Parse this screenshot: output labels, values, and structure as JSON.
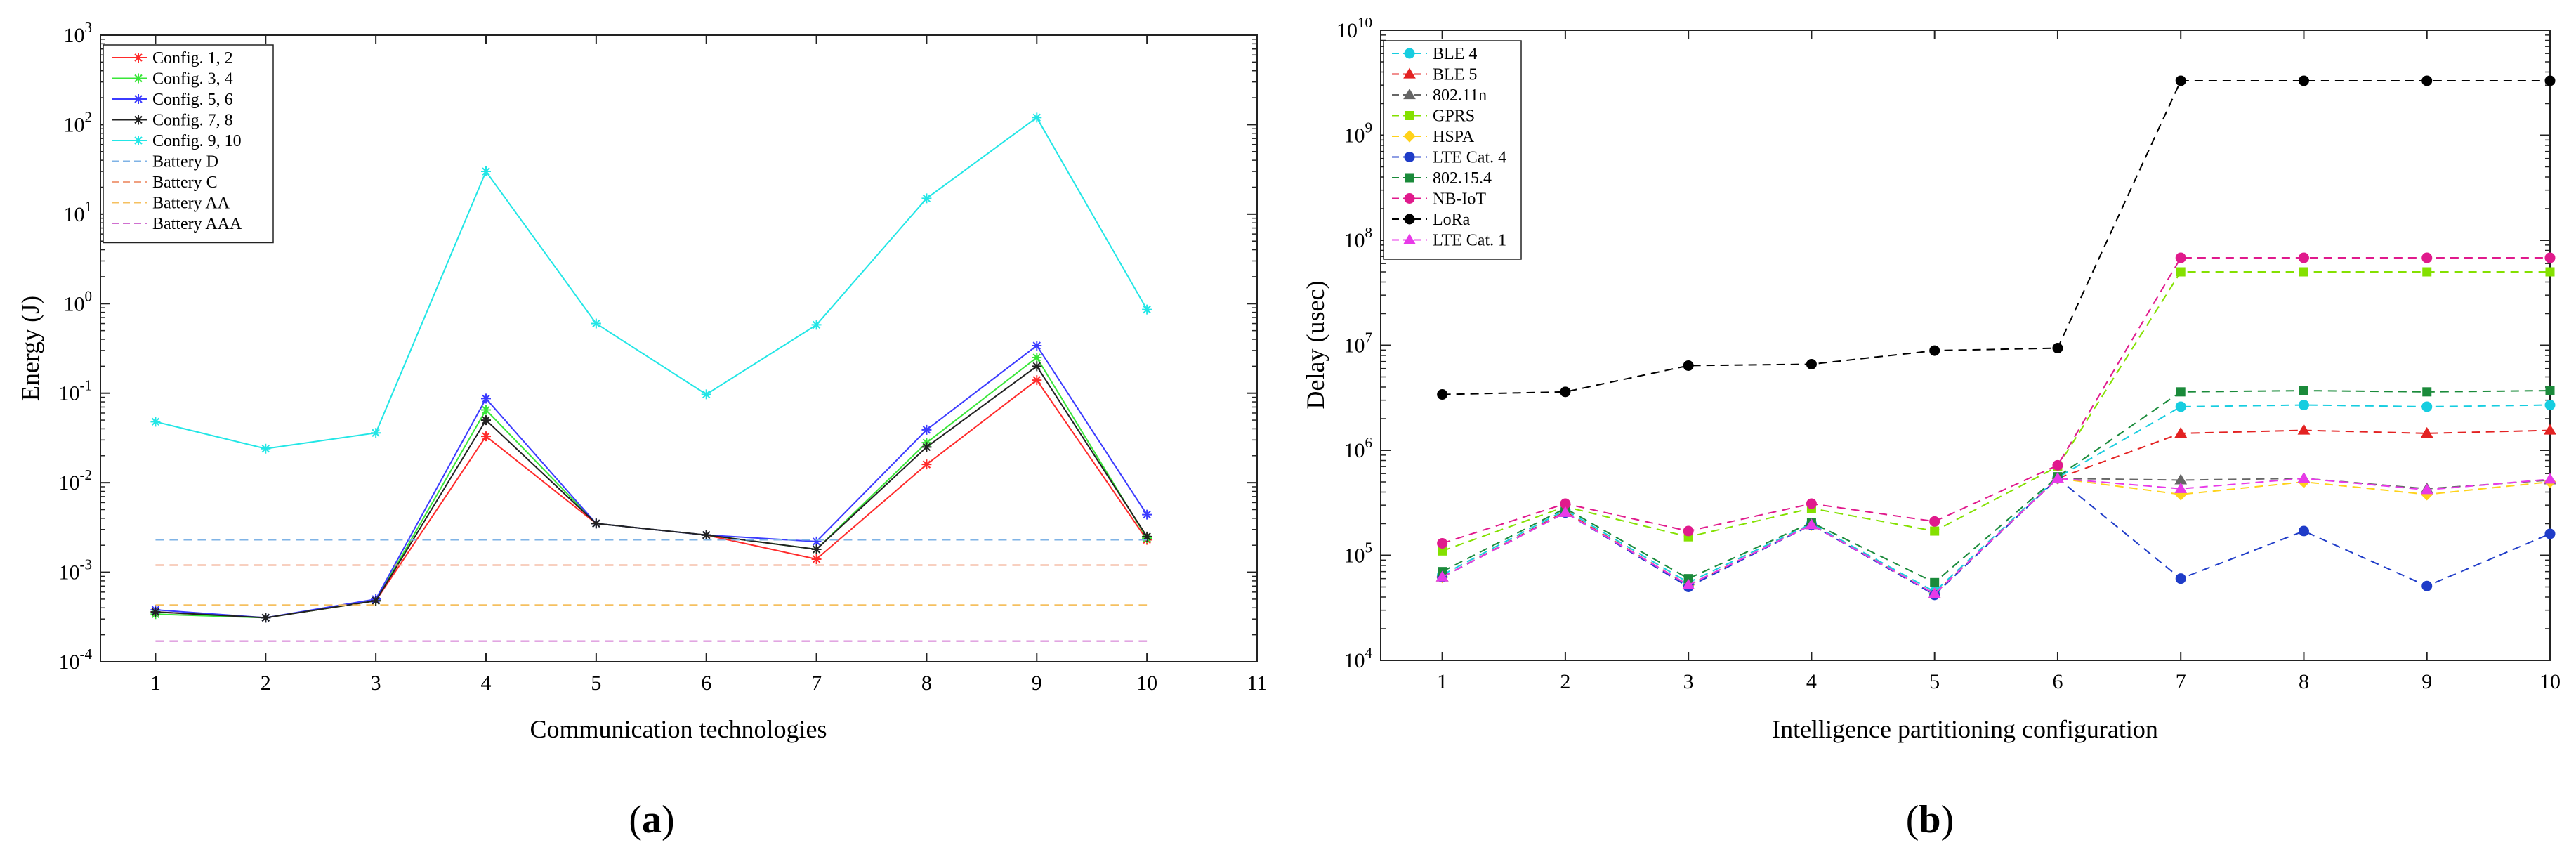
{
  "figure_labels": {
    "a": "(a)",
    "b": "(b)",
    "a_letter": "a",
    "b_letter": "b"
  },
  "colors": {
    "red": "#ff2b2b",
    "green": "#39e639",
    "blue": "#3b3bff",
    "black": "#222222",
    "cyan": "#22e6e6",
    "lightblue": "#7fb3e6",
    "salmon": "#f0a080",
    "orange": "#f5c060",
    "magenta": "#d070d0",
    "ble4": "#17cde0",
    "ble5": "#e32222",
    "wifi": "#666666",
    "gprs": "#84e000",
    "hspa": "#ffd21a",
    "lte4": "#1f3cc8",
    "zigbee": "#1a8a3a",
    "nbiot": "#e01a8c",
    "lora": "#000000",
    "lte1": "#e83ae8"
  },
  "chart_data": [
    {
      "type": "line",
      "id": "a",
      "title": "",
      "xlabel": "Communication technologies",
      "ylabel": "Energy (J)",
      "yscale": "log",
      "ylim": [
        0.0001,
        1000
      ],
      "xlim": [
        0.5,
        11
      ],
      "xticks": [
        "1",
        "2",
        "3",
        "4",
        "5",
        "6",
        "7",
        "8",
        "9",
        "10",
        "11"
      ],
      "yticks": [
        {
          "base": "10",
          "exp": "-4"
        },
        {
          "base": "10",
          "exp": "-3"
        },
        {
          "base": "10",
          "exp": "-2"
        },
        {
          "base": "10",
          "exp": "-1"
        },
        {
          "base": "10",
          "exp": "0"
        },
        {
          "base": "10",
          "exp": "1"
        },
        {
          "base": "10",
          "exp": "2"
        },
        {
          "base": "10",
          "exp": "3"
        }
      ],
      "legend_position": "top-left",
      "x": [
        1,
        2,
        3,
        4,
        5,
        6,
        7,
        8,
        9,
        10
      ],
      "series": [
        {
          "name": "Config. 1, 2",
          "color": "red",
          "style": "solid",
          "marker": "star",
          "values": [
            0.00036,
            0.00031,
            0.00048,
            0.033,
            0.0035,
            0.0026,
            0.0014,
            0.016,
            0.14,
            0.0023
          ]
        },
        {
          "name": "Config. 3, 4",
          "color": "green",
          "style": "solid",
          "marker": "star",
          "values": [
            0.00034,
            0.00031,
            0.00048,
            0.065,
            0.0035,
            0.0026,
            0.0018,
            0.028,
            0.25,
            0.0024
          ]
        },
        {
          "name": "Config. 5, 6",
          "color": "blue",
          "style": "solid",
          "marker": "star",
          "values": [
            0.00038,
            0.00031,
            0.0005,
            0.087,
            0.0035,
            0.0026,
            0.0022,
            0.039,
            0.34,
            0.0044
          ]
        },
        {
          "name": "Config. 7, 8",
          "color": "black",
          "style": "solid",
          "marker": "star",
          "values": [
            0.00036,
            0.00031,
            0.00048,
            0.05,
            0.0035,
            0.0026,
            0.0018,
            0.025,
            0.2,
            0.0025
          ]
        },
        {
          "name": "Config. 9, 10",
          "color": "cyan",
          "style": "solid",
          "marker": "star",
          "values": [
            0.048,
            0.024,
            0.036,
            30,
            0.6,
            0.097,
            0.58,
            15,
            120,
            0.86
          ]
        },
        {
          "name": "Battery D",
          "color": "lightblue",
          "style": "dashed",
          "marker": "none",
          "values": [
            0.0023,
            0.0023,
            0.0023,
            0.0023,
            0.0023,
            0.0023,
            0.0023,
            0.0023,
            0.0023,
            0.0023
          ]
        },
        {
          "name": "Battery C",
          "color": "salmon",
          "style": "dashed",
          "marker": "none",
          "values": [
            0.0012,
            0.0012,
            0.0012,
            0.0012,
            0.0012,
            0.0012,
            0.0012,
            0.0012,
            0.0012,
            0.0012
          ]
        },
        {
          "name": "Battery AA",
          "color": "orange",
          "style": "dashed",
          "marker": "none",
          "values": [
            0.00043,
            0.00043,
            0.00043,
            0.00043,
            0.00043,
            0.00043,
            0.00043,
            0.00043,
            0.00043,
            0.00043
          ]
        },
        {
          "name": "Battery AAA",
          "color": "magenta",
          "style": "dashed",
          "marker": "none",
          "values": [
            0.00017,
            0.00017,
            0.00017,
            0.00017,
            0.00017,
            0.00017,
            0.00017,
            0.00017,
            0.00017,
            0.00017
          ]
        }
      ]
    },
    {
      "type": "line",
      "id": "b",
      "title": "",
      "xlabel": "Intelligence partitioning configuration",
      "ylabel": "Delay (usec)",
      "yscale": "log",
      "ylim": [
        10000,
        10000000000
      ],
      "xlim": [
        0.5,
        10
      ],
      "xticks": [
        "1",
        "2",
        "3",
        "4",
        "5",
        "6",
        "7",
        "8",
        "9",
        "10"
      ],
      "yticks": [
        {
          "base": "10",
          "exp": "4"
        },
        {
          "base": "10",
          "exp": "5"
        },
        {
          "base": "10",
          "exp": "6"
        },
        {
          "base": "10",
          "exp": "7"
        },
        {
          "base": "10",
          "exp": "8"
        },
        {
          "base": "10",
          "exp": "9"
        },
        {
          "base": "10",
          "exp": "10"
        }
      ],
      "legend_position": "top-left",
      "x": [
        1,
        2,
        3,
        4,
        5,
        6,
        7,
        8,
        9,
        10
      ],
      "series": [
        {
          "name": "BLE 4",
          "color": "ble4",
          "style": "dashed",
          "marker": "circle",
          "values": [
            65000,
            270000,
            55000,
            200000,
            45000,
            550000,
            2600000,
            2700000,
            2600000,
            2700000
          ]
        },
        {
          "name": "BLE 5",
          "color": "ble5",
          "style": "dashed",
          "marker": "triangle",
          "values": [
            62000,
            260000,
            52000,
            195000,
            43000,
            540000,
            1450000,
            1550000,
            1450000,
            1550000
          ]
        },
        {
          "name": "802.11n",
          "color": "wifi",
          "style": "dashed",
          "marker": "triangle",
          "values": [
            62000,
            255000,
            52000,
            195000,
            43000,
            540000,
            520000,
            540000,
            430000,
            520000
          ]
        },
        {
          "name": "GPRS",
          "color": "gprs",
          "style": "dashed",
          "marker": "square",
          "values": [
            110000,
            290000,
            150000,
            280000,
            170000,
            700000,
            50000000,
            50000000,
            50000000,
            50000000
          ]
        },
        {
          "name": "HSPA",
          "color": "hspa",
          "style": "dashed",
          "marker": "diamond",
          "values": [
            62000,
            255000,
            52000,
            195000,
            43000,
            540000,
            380000,
            500000,
            380000,
            500000
          ]
        },
        {
          "name": "LTE Cat. 4",
          "color": "lte4",
          "style": "dashed",
          "marker": "circle",
          "values": [
            62000,
            255000,
            50000,
            195000,
            42000,
            540000,
            60000,
            170000,
            51000,
            160000
          ]
        },
        {
          "name": "802.15.4",
          "color": "zigbee",
          "style": "dashed",
          "marker": "square",
          "values": [
            70000,
            280000,
            60000,
            205000,
            55000,
            560000,
            3600000,
            3700000,
            3600000,
            3700000
          ]
        },
        {
          "name": "NB-IoT",
          "color": "nbiot",
          "style": "dashed",
          "marker": "circle",
          "values": [
            130000,
            310000,
            170000,
            310000,
            210000,
            720000,
            68000000,
            68000000,
            68000000,
            68000000
          ]
        },
        {
          "name": "LoRa",
          "color": "lora",
          "style": "dashed",
          "marker": "circle",
          "values": [
            3400000,
            3600000,
            6400000,
            6600000,
            8900000,
            9400000,
            3300000000,
            3300000000,
            3300000000,
            3300000000
          ]
        },
        {
          "name": "LTE Cat. 1",
          "color": "lte1",
          "style": "dashed",
          "marker": "triangle",
          "values": [
            62000,
            255000,
            52000,
            195000,
            43000,
            540000,
            430000,
            540000,
            420000,
            530000
          ]
        }
      ]
    }
  ]
}
